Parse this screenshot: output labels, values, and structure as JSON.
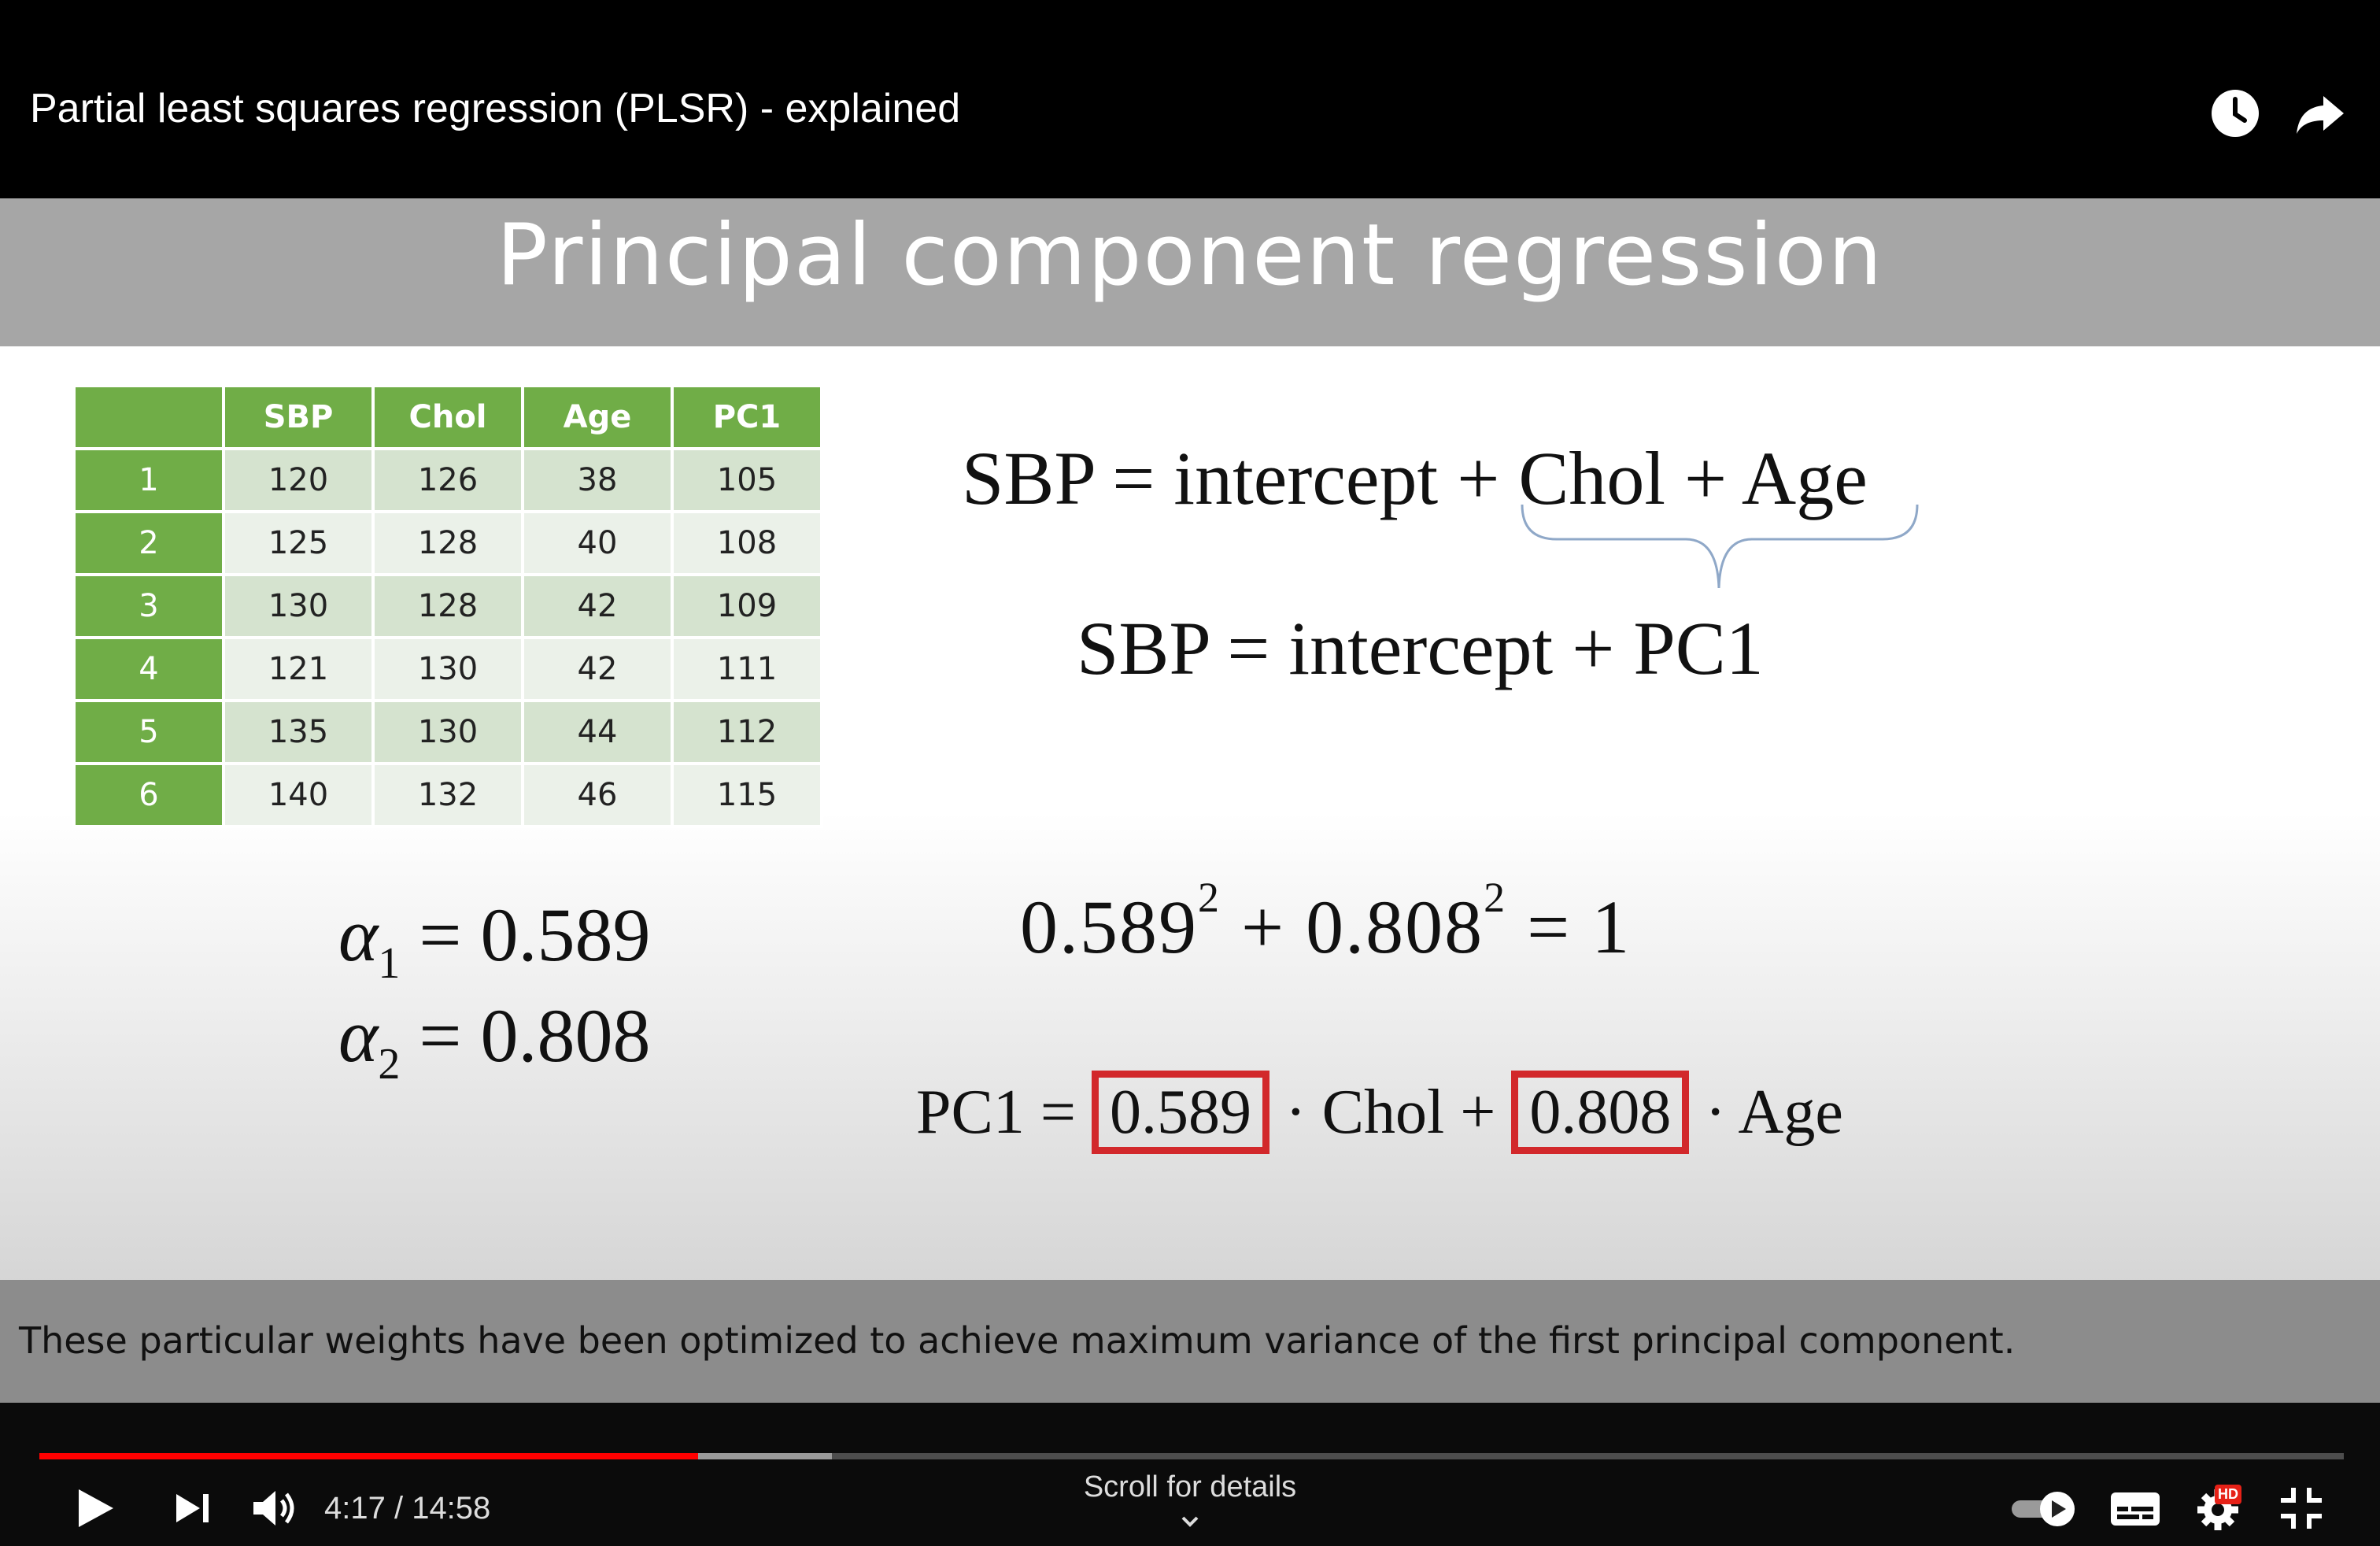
{
  "video": {
    "title": "Partial least squares regression (PLSR) - explained",
    "current_time": "4:17",
    "duration": "14:58",
    "time_display": "4:17 / 14:58",
    "progress_played": 0.286,
    "progress_buffered": 0.344,
    "scroll_hint": "Scroll for details",
    "autoplay": true,
    "quality_badge": "HD"
  },
  "slide": {
    "title": "Principal component regression",
    "table": {
      "headers": [
        "",
        "SBP",
        "Chol",
        "Age",
        "PC1"
      ],
      "rows": [
        [
          "1",
          "120",
          "126",
          "38",
          "105"
        ],
        [
          "2",
          "125",
          "128",
          "40",
          "108"
        ],
        [
          "3",
          "130",
          "128",
          "42",
          "109"
        ],
        [
          "4",
          "121",
          "130",
          "42",
          "111"
        ],
        [
          "5",
          "135",
          "130",
          "44",
          "112"
        ],
        [
          "6",
          "140",
          "132",
          "46",
          "115"
        ]
      ]
    },
    "eq1": "SBP = intercept + Chol + Age",
    "eq2": "SBP = intercept + PC1",
    "alpha1": {
      "symbol": "α",
      "sub": "1",
      "rhs": "= 0.589"
    },
    "alpha2": {
      "symbol": "α",
      "sub": "2",
      "rhs": "= 0.808"
    },
    "sum_eq": {
      "a": "0.589",
      "b": "0.808",
      "exp": "2",
      "plus": "+",
      "rhs": "= 1"
    },
    "pc1_eq": {
      "lhs": "PC1 =",
      "w1": "0.589",
      "mid": "· Chol +",
      "w2": "0.808",
      "end": "· Age"
    },
    "caption": "These particular weights have been optimized to achieve maximum variance of the first principal component."
  },
  "colors": {
    "table_header": "#70ad47",
    "highlight_box": "#d2282b",
    "progress": "#ff0000"
  },
  "icons": [
    "watch-later-icon",
    "share-icon",
    "play-icon",
    "next-icon",
    "volume-icon",
    "autoplay-toggle-icon",
    "subtitles-icon",
    "settings-icon",
    "exit-fullscreen-icon",
    "chevron-down-icon"
  ]
}
